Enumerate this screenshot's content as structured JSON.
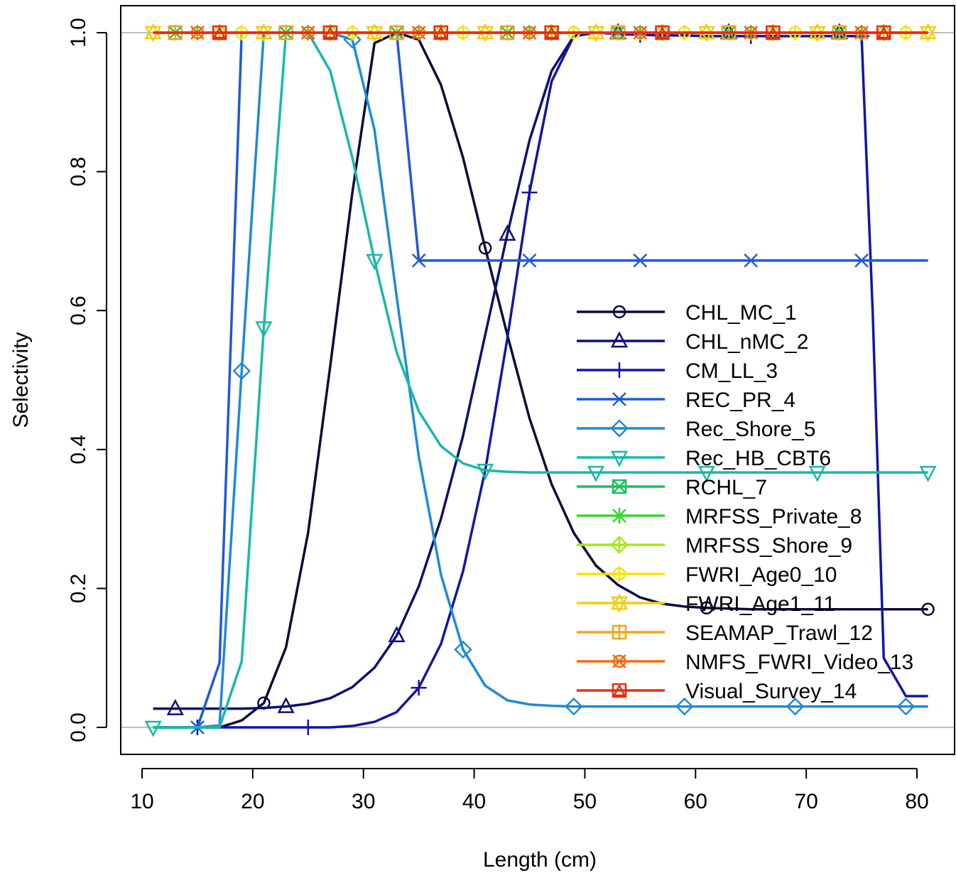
{
  "chart_data": {
    "type": "line",
    "title": "",
    "xlabel": "Length (cm)",
    "ylabel": "Selectivity",
    "xlim": [
      9,
      83
    ],
    "ylim": [
      -0.04,
      1.04
    ],
    "x_ticks": [
      10,
      20,
      30,
      40,
      50,
      60,
      70,
      80
    ],
    "x_tick_labels": [
      "10",
      "20",
      "30",
      "40",
      "50",
      "60",
      "70",
      "80"
    ],
    "y_ticks": [
      0.0,
      0.2,
      0.4,
      0.6,
      0.8,
      1.0
    ],
    "y_tick_labels": [
      "0.0",
      "0.2",
      "0.4",
      "0.6",
      "0.8",
      "1.0"
    ],
    "reference_lines": [
      0,
      1
    ],
    "legend_position": "right",
    "series": [
      {
        "name": "CHL_MC_1",
        "color": "#0b0b3b",
        "marker": "circle",
        "marker_every": 10,
        "marker_start": 5,
        "x": [
          11,
          13,
          15,
          17,
          19,
          21,
          23,
          25,
          27,
          29,
          31,
          33,
          35,
          37,
          39,
          41,
          43,
          45,
          47,
          49,
          51,
          53,
          55,
          57,
          59,
          61,
          63,
          65,
          67,
          69,
          71,
          73,
          75,
          77,
          79,
          81
        ],
        "y": [
          0,
          0,
          0,
          0,
          0.01,
          0.035,
          0.115,
          0.28,
          0.52,
          0.77,
          0.985,
          1.0,
          0.99,
          0.925,
          0.82,
          0.69,
          0.565,
          0.445,
          0.35,
          0.28,
          0.233,
          0.205,
          0.187,
          0.178,
          0.174,
          0.172,
          0.171,
          0.17,
          0.17,
          0.17,
          0.17,
          0.17,
          0.17,
          0.17,
          0.17,
          0.17
        ]
      },
      {
        "name": "CHL_nMC_2",
        "color": "#0c1070",
        "marker": "triangle-up",
        "marker_every": 5,
        "marker_start": 1,
        "x": [
          11,
          13,
          15,
          17,
          19,
          21,
          23,
          25,
          27,
          29,
          31,
          33,
          35,
          37,
          39,
          41,
          43,
          45,
          47,
          49,
          51,
          53,
          55,
          57,
          59,
          61,
          63,
          65,
          67,
          69,
          71,
          73,
          75,
          77,
          79,
          81
        ],
        "y": [
          0.027,
          0.027,
          0.027,
          0.027,
          0.027,
          0.028,
          0.03,
          0.034,
          0.042,
          0.058,
          0.086,
          0.132,
          0.203,
          0.3,
          0.42,
          0.565,
          0.71,
          0.845,
          0.945,
          0.995,
          1.0,
          1.0,
          1.0,
          1.0,
          1.0,
          1.0,
          1.0,
          1.0,
          1.0,
          1.0,
          1.0,
          1.0,
          1.0,
          1.0,
          1.0,
          1.0
        ]
      },
      {
        "name": "CM_LL_3",
        "color": "#1414a8",
        "marker": "plus",
        "marker_every": 5,
        "marker_start": 2,
        "x": [
          11,
          13,
          15,
          17,
          19,
          21,
          23,
          25,
          27,
          29,
          31,
          33,
          35,
          37,
          39,
          41,
          43,
          45,
          47,
          49,
          51,
          53,
          55,
          57,
          59,
          61,
          63,
          65,
          67,
          69,
          71,
          73,
          75,
          76,
          77,
          79,
          81
        ],
        "y": [
          0,
          0,
          0,
          0,
          0,
          0,
          0,
          0,
          0,
          0.002,
          0.008,
          0.022,
          0.057,
          0.12,
          0.225,
          0.37,
          0.56,
          0.77,
          0.93,
          0.995,
          1.0,
          0.998,
          0.997,
          0.996,
          0.996,
          0.995,
          0.995,
          0.995,
          0.995,
          0.995,
          0.995,
          0.995,
          0.995,
          0.6,
          0.1,
          0.045,
          0.045
        ]
      },
      {
        "name": "REC_PR_4",
        "color": "#1e5ad8",
        "marker": "cross",
        "marker_every": 5,
        "marker_start": 2,
        "x": [
          11,
          13,
          15,
          17,
          19,
          21,
          23,
          25,
          27,
          29,
          31,
          33,
          35,
          37,
          39,
          41,
          43,
          45,
          47,
          49,
          51,
          53,
          55,
          57,
          59,
          61,
          63,
          65,
          67,
          69,
          71,
          73,
          75,
          77,
          79,
          81
        ],
        "y": [
          0,
          0,
          0,
          0.093,
          1.0,
          1.0,
          1.0,
          1.0,
          1.0,
          1.0,
          1.0,
          1.0,
          0.672,
          0.672,
          0.672,
          0.672,
          0.672,
          0.672,
          0.672,
          0.672,
          0.672,
          0.672,
          0.672,
          0.672,
          0.672,
          0.672,
          0.672,
          0.672,
          0.672,
          0.672,
          0.672,
          0.672,
          0.672,
          0.672,
          0.672,
          0.672
        ]
      },
      {
        "name": "Rec_Shore_5",
        "color": "#1f8ad6",
        "marker": "diamond",
        "marker_every": 5,
        "marker_start": 4,
        "x": [
          11,
          13,
          15,
          17,
          19,
          21,
          23,
          25,
          27,
          29,
          31,
          33,
          35,
          37,
          39,
          41,
          43,
          45,
          47,
          49,
          51,
          53,
          55,
          57,
          59,
          61,
          63,
          65,
          67,
          69,
          71,
          73,
          75,
          77,
          79,
          81
        ],
        "y": [
          0,
          0,
          0,
          0.003,
          0.513,
          1.0,
          1.0,
          1.0,
          1.0,
          0.99,
          0.86,
          0.62,
          0.39,
          0.22,
          0.112,
          0.06,
          0.039,
          0.033,
          0.031,
          0.03,
          0.03,
          0.03,
          0.03,
          0.03,
          0.03,
          0.03,
          0.03,
          0.03,
          0.03,
          0.03,
          0.03,
          0.03,
          0.03,
          0.03,
          0.03,
          0.03
        ]
      },
      {
        "name": "Rec_HB_CBT6",
        "color": "#18b8a8",
        "marker": "triangle-down",
        "marker_every": 5,
        "marker_start": 0,
        "x": [
          11,
          13,
          15,
          17,
          19,
          21,
          23,
          25,
          27,
          29,
          31,
          33,
          35,
          37,
          39,
          41,
          43,
          45,
          47,
          49,
          51,
          53,
          55,
          57,
          59,
          61,
          63,
          65,
          67,
          69,
          71,
          73,
          75,
          77,
          79,
          81
        ],
        "y": [
          0,
          0,
          0,
          0,
          0.095,
          0.575,
          1.0,
          1.0,
          0.945,
          0.82,
          0.672,
          0.54,
          0.455,
          0.405,
          0.38,
          0.37,
          0.368,
          0.367,
          0.367,
          0.367,
          0.367,
          0.367,
          0.367,
          0.367,
          0.367,
          0.367,
          0.367,
          0.367,
          0.367,
          0.367,
          0.367,
          0.367,
          0.367,
          0.367,
          0.367,
          0.367
        ]
      },
      {
        "name": "RCHL_7",
        "color": "#16c25a",
        "marker": "square-cross",
        "marker_every": 5,
        "marker_start": 1,
        "x": [
          11,
          81
        ],
        "y": [
          1.0,
          1.0
        ]
      },
      {
        "name": "MRFSS_Private_8",
        "color": "#3ad42c",
        "marker": "asterisk",
        "marker_every": 5,
        "marker_start": 2,
        "x": [
          11,
          81
        ],
        "y": [
          1.0,
          1.0
        ]
      },
      {
        "name": "MRFSS_Shore_9",
        "color": "#a8e61c",
        "marker": "diamond-plus",
        "marker_every": 5,
        "marker_start": 3,
        "x": [
          11,
          81
        ],
        "y": [
          1.0,
          1.0
        ]
      },
      {
        "name": "FWRI_Age0_10",
        "color": "#f2e600",
        "marker": "circle-plus",
        "marker_every": 5,
        "marker_start": 4,
        "x": [
          11,
          81
        ],
        "y": [
          1.0,
          1.0
        ]
      },
      {
        "name": "FWRI_Age1_11",
        "color": "#f5cc10",
        "marker": "star-of-david",
        "marker_every": 5,
        "marker_start": 0,
        "x": [
          11,
          81
        ],
        "y": [
          1.0,
          1.0
        ]
      },
      {
        "name": "SEAMAP_Trawl_12",
        "color": "#f5a41c",
        "marker": "square-plus",
        "marker_every": 5,
        "marker_start": 1,
        "x": [
          11,
          81
        ],
        "y": [
          1.0,
          1.0
        ]
      },
      {
        "name": "NMFS_FWRI_Video_13",
        "color": "#f26c10",
        "marker": "circle-cross",
        "marker_every": 5,
        "marker_start": 2,
        "x": [
          11,
          81
        ],
        "y": [
          1.0,
          1.0
        ]
      },
      {
        "name": "Visual_Survey_14",
        "color": "#f0280c",
        "marker": "square-triangle",
        "marker_every": 5,
        "marker_start": 3,
        "x": [
          11,
          81
        ],
        "y": [
          1.0,
          1.0
        ]
      }
    ]
  }
}
